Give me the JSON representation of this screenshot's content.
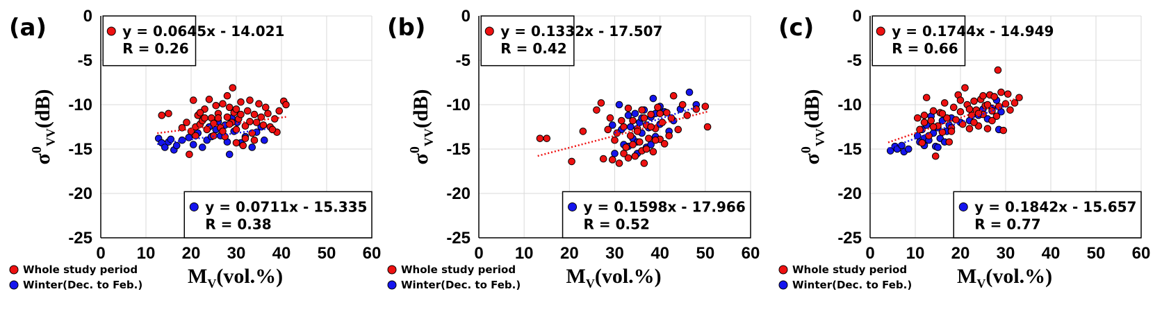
{
  "colors": {
    "whole": "#ee1111",
    "winter": "#1515ee",
    "grid": "#d9d9d9"
  },
  "legend": {
    "whole": "Whole study period",
    "winter": "Winter(Dec. to Feb.)"
  },
  "chart_data": [
    {
      "type": "scatter",
      "label": "(a)",
      "xlabel": "MV(vol.%)",
      "ylabel": "σ0VV(dB)",
      "xlim": [
        0,
        60
      ],
      "ylim": [
        -25,
        0
      ],
      "xticks": [
        "0",
        "10",
        "20",
        "30",
        "40",
        "50",
        "60"
      ],
      "yticks": [
        "0",
        "-5",
        "-10",
        "-15",
        "-20",
        "-25"
      ],
      "whole_eq": "y = 0.0645x - 14.021",
      "whole_r": "R = 0.26",
      "winter_eq": "y = 0.0711x - 15.335",
      "winter_r": "R = 0.38",
      "whole_line": {
        "slope": 0.0645,
        "intercept": -14.021,
        "x": [
          12.5,
          41
        ]
      },
      "winter_line": {
        "slope": 0.0711,
        "intercept": -15.335,
        "x": [
          12.5,
          37
        ]
      },
      "winter_points": [
        [
          12.8,
          -13.8
        ],
        [
          13.5,
          -14.3
        ],
        [
          14.2,
          -14.8
        ],
        [
          15,
          -14.2
        ],
        [
          15.5,
          -13.9
        ],
        [
          16.2,
          -15.1
        ],
        [
          16.8,
          -14.6
        ],
        [
          18,
          -14
        ],
        [
          19.5,
          -13.7
        ],
        [
          20.5,
          -14.5
        ],
        [
          21.5,
          -13.2
        ],
        [
          22.5,
          -14.8
        ],
        [
          23.5,
          -14
        ],
        [
          24.5,
          -13.6
        ],
        [
          25.5,
          -12.8
        ],
        [
          26,
          -11.9
        ],
        [
          26.5,
          -13.5
        ],
        [
          27.5,
          -12.3
        ],
        [
          28,
          -14.2
        ],
        [
          28.5,
          -15.6
        ],
        [
          29.5,
          -13
        ],
        [
          30.2,
          -12
        ],
        [
          31,
          -14.3
        ],
        [
          32,
          -13.6
        ],
        [
          33.5,
          -14.8
        ],
        [
          34.5,
          -13.1
        ],
        [
          35.5,
          -12.5
        ],
        [
          36.2,
          -14
        ],
        [
          24,
          -12.5
        ],
        [
          29,
          -11.5
        ]
      ],
      "whole_points": [
        [
          13.5,
          -11.2
        ],
        [
          15,
          -11
        ],
        [
          18,
          -12.6
        ],
        [
          19,
          -12
        ],
        [
          19.6,
          -15.6
        ],
        [
          20,
          -13
        ],
        [
          20.5,
          -9.5
        ],
        [
          21,
          -12.5
        ],
        [
          21.5,
          -11.2
        ],
        [
          22,
          -12.2
        ],
        [
          22.5,
          -11.8
        ],
        [
          23,
          -10.5
        ],
        [
          23.5,
          -12.8
        ],
        [
          24,
          -9.4
        ],
        [
          24.5,
          -11.5
        ],
        [
          25,
          -12.1
        ],
        [
          25.5,
          -10.1
        ],
        [
          26,
          -11
        ],
        [
          26.5,
          -12.6
        ],
        [
          27,
          -9.9
        ],
        [
          27.5,
          -13.6
        ],
        [
          28,
          -11.4
        ],
        [
          28.5,
          -10.3
        ],
        [
          29,
          -12
        ],
        [
          29.2,
          -8.1
        ],
        [
          29.5,
          -10.9
        ],
        [
          30,
          -12.8
        ],
        [
          30.5,
          -11.6
        ],
        [
          31,
          -9.7
        ],
        [
          31.5,
          -14.6
        ],
        [
          32,
          -12.4
        ],
        [
          32.5,
          -10.7
        ],
        [
          33,
          -11.9
        ],
        [
          33.5,
          -13.2
        ],
        [
          34,
          -11.1
        ],
        [
          34.5,
          -12
        ],
        [
          35,
          -9.9
        ],
        [
          35.5,
          -11.4
        ],
        [
          36,
          -12.3
        ],
        [
          37,
          -11
        ],
        [
          37.5,
          -12.5
        ],
        [
          38.5,
          -11.6
        ],
        [
          39,
          -13.1
        ],
        [
          39.5,
          -10.7
        ],
        [
          40.5,
          -9.6
        ],
        [
          41,
          -10
        ],
        [
          26,
          -11.5
        ],
        [
          27,
          -13
        ],
        [
          28.5,
          -12.2
        ],
        [
          30,
          -14.3
        ],
        [
          31,
          -11.1
        ],
        [
          32,
          -13.8
        ],
        [
          33,
          -9.5
        ],
        [
          25,
          -13.5
        ],
        [
          23,
          -11.5
        ],
        [
          21,
          -13.5
        ],
        [
          36.5,
          -10.3
        ],
        [
          38,
          -12.8
        ],
        [
          22,
          -10.9
        ],
        [
          34,
          -14
        ],
        [
          30,
          -10.5
        ],
        [
          28,
          -9
        ]
      ],
      "eq_box_top": {
        "x0": 0.5,
        "y0": 0,
        "x1": 21,
        "y1": -5.6
      },
      "eq_box_bottom": {
        "x0": 18.5,
        "y0": -19.8,
        "x1": 60,
        "y1": -25
      }
    },
    {
      "type": "scatter",
      "label": "(b)",
      "xlabel": "MV(vol.%)",
      "ylabel": "σ0VV(dB)",
      "xlim": [
        0,
        60
      ],
      "ylim": [
        -25,
        0
      ],
      "xticks": [
        "0",
        "10",
        "20",
        "30",
        "40",
        "50",
        "60"
      ],
      "yticks": [
        "0",
        "-5",
        "-10",
        "-15",
        "-20",
        "-25"
      ],
      "whole_eq": "y = 0.1332x - 17.507",
      "whole_r": "R = 0.42",
      "winter_eq": "y = 0.1598x - 17.966",
      "winter_r": "R = 0.52",
      "whole_line": {
        "slope": 0.1332,
        "intercept": -17.507,
        "x": [
          13,
          50.5
        ]
      },
      "winter_line": {
        "slope": 0.1598,
        "intercept": -17.966,
        "x": [
          30,
          48
        ]
      },
      "winter_points": [
        [
          29.5,
          -12.3
        ],
        [
          30,
          -15.5
        ],
        [
          31,
          -10
        ],
        [
          31.5,
          -12.8
        ],
        [
          32,
          -14.5
        ],
        [
          33,
          -11.2
        ],
        [
          33.5,
          -12.5
        ],
        [
          34,
          -13.8
        ],
        [
          34.5,
          -11
        ],
        [
          35,
          -14.2
        ],
        [
          35.5,
          -12
        ],
        [
          36,
          -13.2
        ],
        [
          36.5,
          -10.6
        ],
        [
          37,
          -14.8
        ],
        [
          37.5,
          -12.6
        ],
        [
          38,
          -11.4
        ],
        [
          38.5,
          -9.3
        ],
        [
          39,
          -13.6
        ],
        [
          40,
          -12.2
        ],
        [
          41,
          -10.8
        ],
        [
          42,
          -13
        ],
        [
          43,
          -11.8
        ],
        [
          44.5,
          -10.5
        ],
        [
          46.5,
          -8.6
        ],
        [
          48,
          -10
        ],
        [
          35,
          -15.5
        ],
        [
          38,
          -14.5
        ],
        [
          33,
          -14.7
        ],
        [
          36,
          -11.5
        ],
        [
          40,
          -10.2
        ],
        [
          39,
          -11
        ]
      ],
      "whole_points": [
        [
          13.5,
          -13.8
        ],
        [
          15,
          -13.8
        ],
        [
          20.5,
          -16.4
        ],
        [
          23,
          -13
        ],
        [
          26,
          -10.6
        ],
        [
          27,
          -9.8
        ],
        [
          27.5,
          -16.1
        ],
        [
          28.5,
          -12.8
        ],
        [
          29,
          -11.5
        ],
        [
          29.5,
          -16.2
        ],
        [
          30,
          -14
        ],
        [
          30.5,
          -13.2
        ],
        [
          31,
          -16.6
        ],
        [
          31.5,
          -11.8
        ],
        [
          32,
          -12.5
        ],
        [
          32.5,
          -14.8
        ],
        [
          33,
          -10.4
        ],
        [
          33.5,
          -13.5
        ],
        [
          34,
          -11.8
        ],
        [
          34.5,
          -15.8
        ],
        [
          35,
          -12.7
        ],
        [
          35.5,
          -14.2
        ],
        [
          36,
          -10.6
        ],
        [
          36.5,
          -16.6
        ],
        [
          37,
          -12.3
        ],
        [
          37.5,
          -13.8
        ],
        [
          38,
          -11.1
        ],
        [
          38.5,
          -15.3
        ],
        [
          39,
          -12.7
        ],
        [
          39.5,
          -10.3
        ],
        [
          40,
          -13.9
        ],
        [
          40.5,
          -12
        ],
        [
          41,
          -14.4
        ],
        [
          41.5,
          -10.9
        ],
        [
          42.5,
          -11.5
        ],
        [
          43,
          -9
        ],
        [
          44,
          -12.8
        ],
        [
          45,
          -10
        ],
        [
          46,
          -11.2
        ],
        [
          48,
          -10.5
        ],
        [
          50,
          -10.2
        ],
        [
          50.5,
          -12.5
        ],
        [
          34,
          -14.5
        ],
        [
          36,
          -15.2
        ],
        [
          33,
          -16
        ],
        [
          37,
          -15
        ],
        [
          39,
          -14
        ],
        [
          35,
          -13
        ],
        [
          38,
          -12.5
        ],
        [
          36.5,
          -11.5
        ],
        [
          32,
          -15.5
        ],
        [
          40,
          -11
        ],
        [
          42,
          -13.5
        ]
      ],
      "eq_box_top": {
        "x0": 0.5,
        "y0": 0,
        "x1": 21,
        "y1": -5.6
      },
      "eq_box_bottom": {
        "x0": 18.5,
        "y0": -19.8,
        "x1": 60,
        "y1": -25
      }
    },
    {
      "type": "scatter",
      "label": "(c)",
      "xlabel": "MV(vol.%)",
      "ylabel": "σ0VV(dB)",
      "xlim": [
        0,
        60
      ],
      "ylim": [
        -25,
        0
      ],
      "xticks": [
        "0",
        "10",
        "20",
        "30",
        "40",
        "50",
        "60"
      ],
      "yticks": [
        "0",
        "-5",
        "-10",
        "-15",
        "-20",
        "-25"
      ],
      "whole_eq": "y = 0.1744x - 14.949",
      "whole_r": "R = 0.66",
      "winter_eq": "y = 0.1842x - 15.657",
      "winter_r": "R = 0.77",
      "whole_line": {
        "slope": 0.1744,
        "intercept": -14.949,
        "x": [
          4,
          33
        ]
      },
      "winter_line": {
        "slope": 0.1842,
        "intercept": -15.657,
        "x": [
          4,
          30
        ]
      },
      "winter_points": [
        [
          4.5,
          -15.2
        ],
        [
          5.5,
          -14.7
        ],
        [
          6,
          -15
        ],
        [
          7,
          -14.6
        ],
        [
          7.5,
          -15.3
        ],
        [
          8.5,
          -15
        ],
        [
          10.5,
          -13.5
        ],
        [
          11,
          -14.2
        ],
        [
          11.5,
          -12.8
        ],
        [
          12,
          -13.8
        ],
        [
          12.5,
          -12.3
        ],
        [
          13,
          -14
        ],
        [
          13.5,
          -11.3
        ],
        [
          14,
          -13.2
        ],
        [
          14.5,
          -14.7
        ],
        [
          15,
          -12.6
        ],
        [
          15.5,
          -13.8
        ],
        [
          16,
          -11.8
        ],
        [
          16.5,
          -14.2
        ],
        [
          17,
          -13
        ],
        [
          17.5,
          -12.3
        ],
        [
          18,
          -11.5
        ],
        [
          20,
          -12
        ],
        [
          22,
          -11.8
        ],
        [
          24,
          -11.2
        ],
        [
          25,
          -10.5
        ],
        [
          26,
          -11.6
        ],
        [
          27,
          -10.4
        ],
        [
          28,
          -9.5
        ],
        [
          28.5,
          -12.8
        ],
        [
          29,
          -10.8
        ],
        [
          15,
          -14.8
        ],
        [
          12,
          -14.6
        ]
      ],
      "whole_points": [
        [
          10.5,
          -11.5
        ],
        [
          11,
          -12.8
        ],
        [
          11.5,
          -14.3
        ],
        [
          12,
          -11.2
        ],
        [
          12.5,
          -9.2
        ],
        [
          13,
          -13.5
        ],
        [
          13.5,
          -11.8
        ],
        [
          14,
          -10.7
        ],
        [
          14.5,
          -15.8
        ],
        [
          15,
          -12.4
        ],
        [
          15.5,
          -10.9
        ],
        [
          16,
          -13.1
        ],
        [
          16.5,
          -9.8
        ],
        [
          17,
          -11.5
        ],
        [
          17.5,
          -14.2
        ],
        [
          18,
          -12.6
        ],
        [
          18.5,
          -10.3
        ],
        [
          19,
          -11.7
        ],
        [
          19.5,
          -8.9
        ],
        [
          20,
          -10.8
        ],
        [
          20.5,
          -12.2
        ],
        [
          21,
          -8.1
        ],
        [
          21.5,
          -10
        ],
        [
          22,
          -12.7
        ],
        [
          22.5,
          -11.2
        ],
        [
          23,
          -9.6
        ],
        [
          23.5,
          -10.6
        ],
        [
          24,
          -12.4
        ],
        [
          24.5,
          -9.4
        ],
        [
          25,
          -11.1
        ],
        [
          25.5,
          -10.1
        ],
        [
          26,
          -12.7
        ],
        [
          26.5,
          -8.9
        ],
        [
          27,
          -10.7
        ],
        [
          27.5,
          -9.1
        ],
        [
          28,
          -11.3
        ],
        [
          28.3,
          -6.1
        ],
        [
          28.5,
          -10.2
        ],
        [
          29,
          -8.6
        ],
        [
          29.5,
          -12.9
        ],
        [
          30,
          -9.9
        ],
        [
          30.5,
          -8.8
        ],
        [
          31,
          -10.6
        ],
        [
          32,
          -9.8
        ],
        [
          33,
          -9.2
        ],
        [
          12,
          -12
        ],
        [
          14,
          -12.5
        ],
        [
          16,
          -11
        ],
        [
          18,
          -13
        ],
        [
          20,
          -9.5
        ],
        [
          22,
          -10.5
        ],
        [
          24,
          -11
        ],
        [
          26,
          -10
        ],
        [
          27,
          -11.8
        ],
        [
          25,
          -9
        ],
        [
          23,
          -12
        ]
      ],
      "eq_box_top": {
        "x0": 0.5,
        "y0": 0,
        "x1": 21,
        "y1": -5.6
      },
      "eq_box_bottom": {
        "x0": 18.5,
        "y0": -19.8,
        "x1": 60,
        "y1": -25
      }
    }
  ]
}
